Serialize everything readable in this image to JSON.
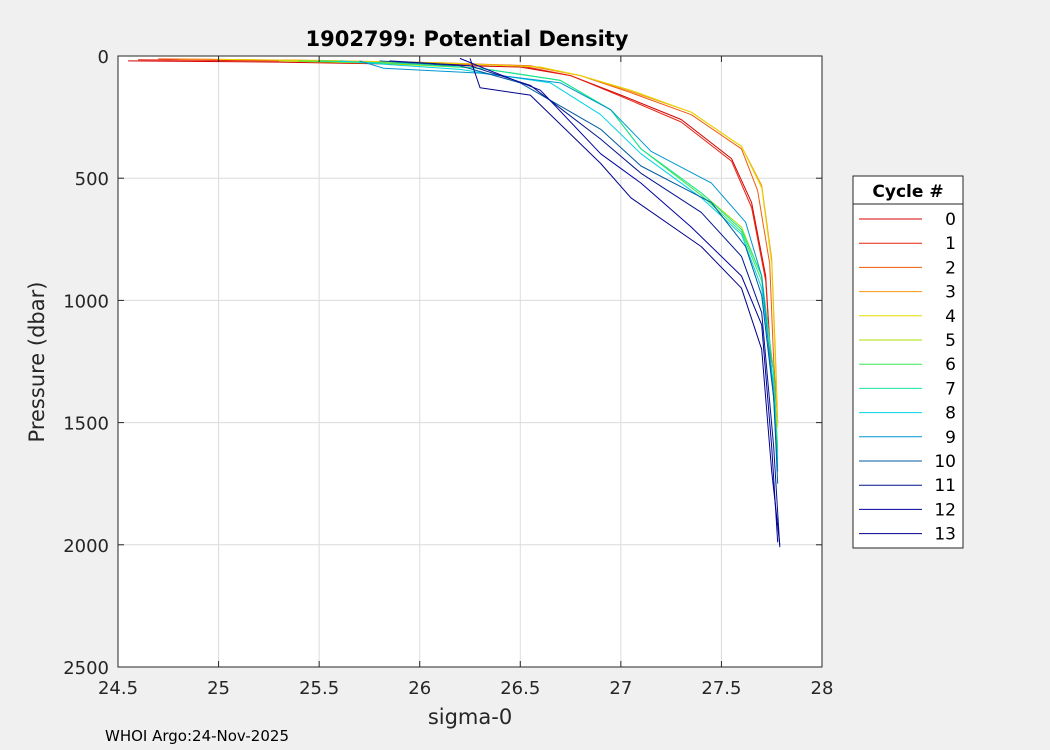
{
  "chart_data": {
    "type": "line",
    "title": "1902799: Potential Density",
    "xlabel": "sigma-0",
    "ylabel": "Pressure (dbar)",
    "xlim": [
      24.5,
      28
    ],
    "ylim": [
      0,
      2500
    ],
    "y_reversed": true,
    "xticks": [
      24.5,
      25,
      25.5,
      26,
      26.5,
      27,
      27.5,
      28
    ],
    "xtick_labels": [
      "24.5",
      "25",
      "25.5",
      "26",
      "26.5",
      "27",
      "27.5",
      "28"
    ],
    "yticks": [
      0,
      500,
      1000,
      1500,
      2000,
      2500
    ],
    "ytick_labels": [
      "0",
      "500",
      "1000",
      "1500",
      "2000",
      "2500"
    ],
    "grid": true,
    "legend": {
      "title": "Cycle #",
      "placement": "outside-right"
    },
    "series": [
      {
        "name": "0",
        "color": "#d40000",
        "x": [
          24.55,
          25.3,
          26.0,
          26.5,
          26.75,
          27.0,
          27.3,
          27.55,
          27.65,
          27.72,
          27.75,
          27.77
        ],
        "y": [
          20,
          25,
          35,
          45,
          80,
          160,
          260,
          420,
          600,
          900,
          1300,
          1500
        ]
      },
      {
        "name": "1",
        "color": "#e8240f",
        "x": [
          24.6,
          25.3,
          26.0,
          26.5,
          26.75,
          27.0,
          27.3,
          27.55,
          27.65,
          27.72,
          27.75,
          27.77
        ],
        "y": [
          15,
          20,
          30,
          40,
          80,
          165,
          270,
          430,
          620,
          920,
          1300,
          1500
        ]
      },
      {
        "name": "2",
        "color": "#f05a0f",
        "x": [
          24.7,
          25.4,
          26.1,
          26.55,
          26.8,
          27.05,
          27.35,
          27.6,
          27.68,
          27.74,
          27.76,
          27.78
        ],
        "y": [
          12,
          18,
          28,
          40,
          80,
          150,
          240,
          380,
          550,
          850,
          1250,
          1500
        ]
      },
      {
        "name": "3",
        "color": "#f7940f",
        "x": [
          24.8,
          25.5,
          26.1,
          26.55,
          26.8,
          27.05,
          27.35,
          27.6,
          27.7,
          27.75,
          27.77,
          27.78
        ],
        "y": [
          12,
          18,
          28,
          42,
          80,
          145,
          230,
          370,
          530,
          830,
          1250,
          1500
        ]
      },
      {
        "name": "4",
        "color": "#e6d800",
        "x": [
          25.0,
          25.6,
          26.15,
          26.6,
          26.8,
          27.05,
          27.35,
          27.6,
          27.7,
          27.75,
          27.77,
          27.78
        ],
        "y": [
          14,
          20,
          30,
          45,
          80,
          140,
          230,
          370,
          540,
          850,
          1300,
          1520
        ]
      },
      {
        "name": "5",
        "color": "#a8e000",
        "x": [
          25.3,
          25.8,
          26.3,
          26.7,
          26.95,
          27.1,
          27.4,
          27.6,
          27.7,
          27.76,
          27.78
        ],
        "y": [
          20,
          30,
          50,
          100,
          220,
          380,
          560,
          700,
          900,
          1300,
          1600
        ]
      },
      {
        "name": "6",
        "color": "#3ce650",
        "x": [
          25.4,
          25.9,
          26.3,
          26.7,
          26.95,
          27.1,
          27.4,
          27.6,
          27.7,
          27.76,
          27.78
        ],
        "y": [
          20,
          30,
          50,
          100,
          220,
          380,
          570,
          720,
          920,
          1300,
          1620
        ]
      },
      {
        "name": "7",
        "color": "#14e6a0",
        "x": [
          25.5,
          25.9,
          26.3,
          26.7,
          26.95,
          27.1,
          27.4,
          27.6,
          27.7,
          27.76,
          27.78
        ],
        "y": [
          20,
          30,
          50,
          100,
          220,
          380,
          560,
          710,
          900,
          1300,
          1650
        ]
      },
      {
        "name": "8",
        "color": "#00d2e6",
        "x": [
          25.6,
          25.85,
          26.2,
          26.65,
          26.9,
          27.1,
          27.4,
          27.6,
          27.7,
          27.76,
          27.78
        ],
        "y": [
          20,
          35,
          55,
          110,
          240,
          400,
          580,
          730,
          950,
          1350,
          1680
        ]
      },
      {
        "name": "9",
        "color": "#0096d2",
        "x": [
          25.7,
          25.82,
          26.3,
          26.7,
          26.95,
          27.15,
          27.45,
          27.62,
          27.7,
          27.76,
          27.78
        ],
        "y": [
          20,
          50,
          70,
          110,
          220,
          390,
          520,
          680,
          900,
          1400,
          1700
        ]
      },
      {
        "name": "10",
        "color": "#005aa0",
        "x": [
          25.8,
          26.2,
          26.5,
          26.9,
          27.1,
          27.45,
          27.62,
          27.7,
          27.76,
          27.78
        ],
        "y": [
          20,
          40,
          110,
          300,
          450,
          600,
          780,
          980,
          1400,
          1750
        ]
      },
      {
        "name": "11",
        "color": "#00148c",
        "x": [
          25.85,
          26.25,
          26.55,
          26.9,
          27.1,
          27.4,
          27.6,
          27.7,
          27.76,
          27.79
        ],
        "y": [
          20,
          40,
          120,
          340,
          480,
          640,
          820,
          1050,
          1600,
          2010
        ]
      },
      {
        "name": "12",
        "color": "#0000a0",
        "x": [
          26.2,
          26.35,
          26.6,
          26.9,
          27.1,
          27.35,
          27.6,
          27.7,
          27.75,
          27.78
        ],
        "y": [
          10,
          60,
          140,
          400,
          520,
          700,
          900,
          1100,
          1600,
          1990
        ]
      },
      {
        "name": "13",
        "color": "#00008c",
        "x": [
          26.25,
          26.3,
          26.55,
          26.9,
          27.05,
          27.4,
          27.6,
          27.7,
          27.75,
          27.79
        ],
        "y": [
          10,
          130,
          160,
          440,
          580,
          780,
          950,
          1200,
          1700,
          2000
        ]
      }
    ]
  },
  "footer": "WHOI Argo:24-Nov-2025"
}
